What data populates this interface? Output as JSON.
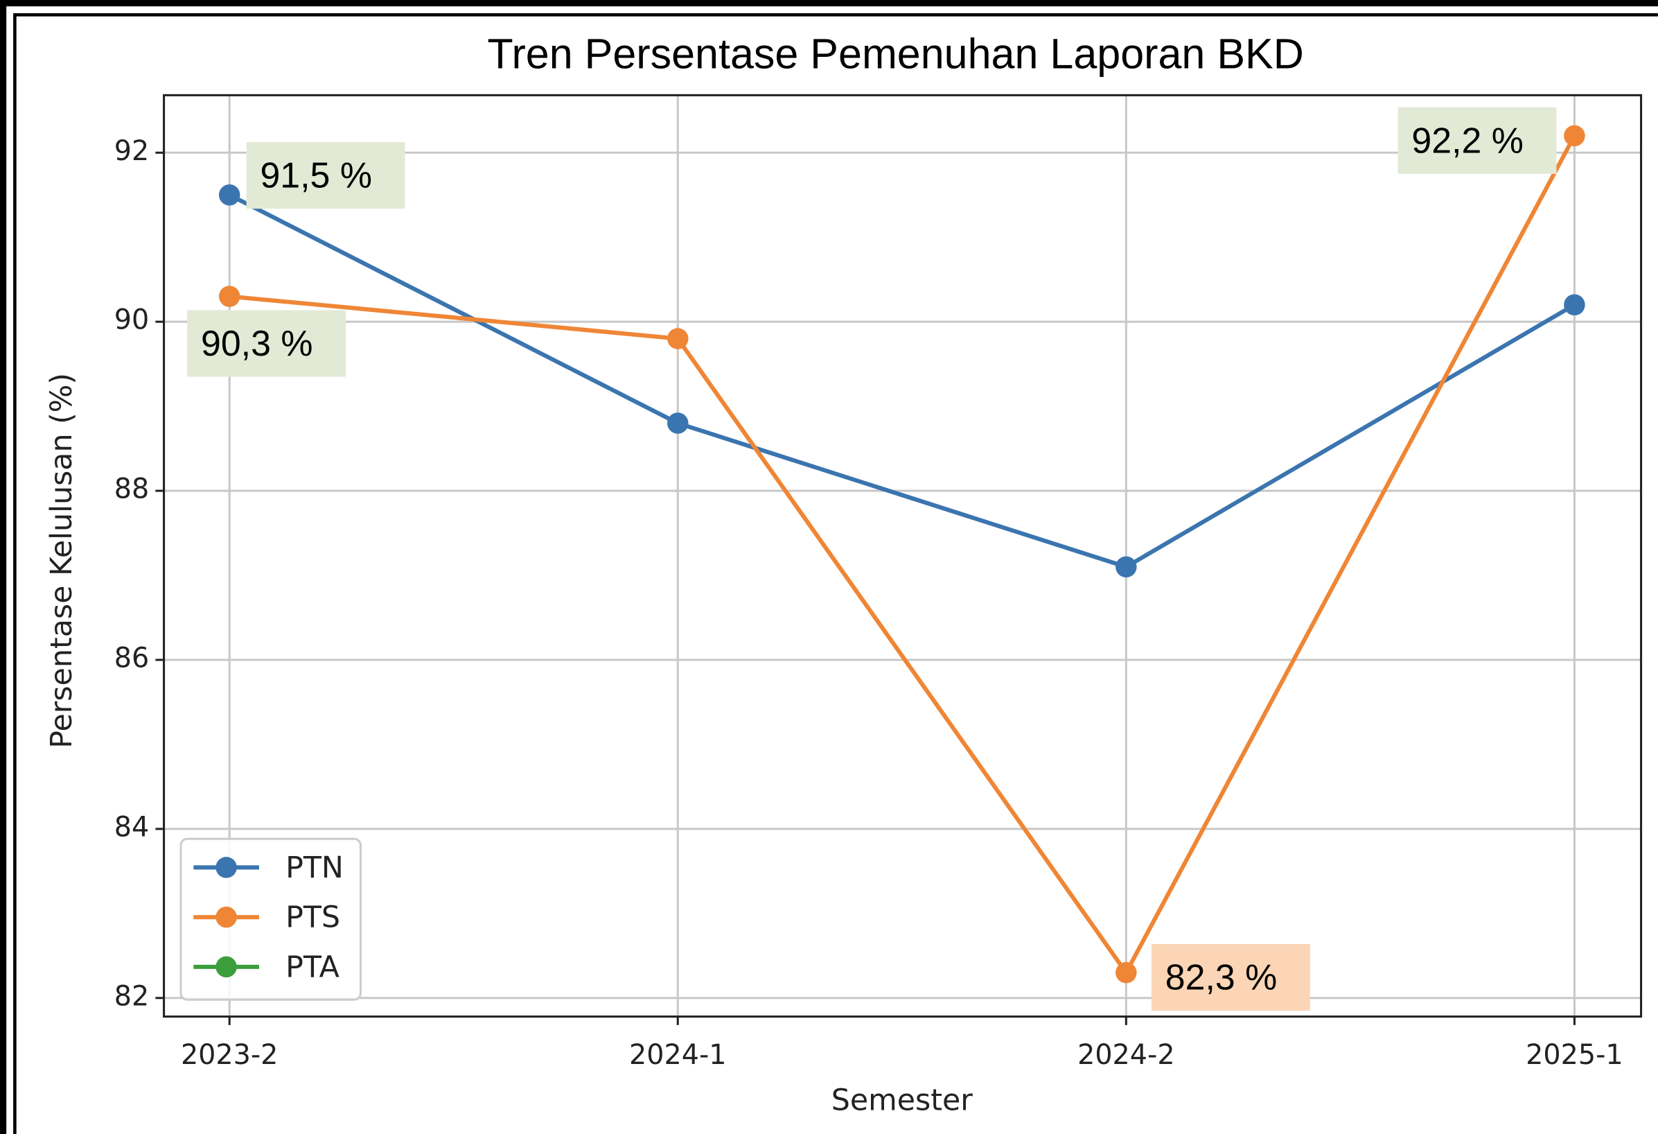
{
  "chart_data": {
    "type": "line",
    "title": "Tren Persentase Pemenuhan Laporan BKD",
    "x_label": "Semester",
    "y_label": "Persentase Kelulusan (%)",
    "categories": [
      "2023-2",
      "2024-1",
      "2024-2",
      "2025-1"
    ],
    "series": [
      {
        "name": "PTN",
        "color": "#3b75af",
        "values": [
          91.5,
          88.8,
          87.1,
          90.2
        ],
        "value_labels": [
          "91,5 %",
          null,
          null,
          null
        ]
      },
      {
        "name": "PTS",
        "color": "#ef8636",
        "values": [
          90.3,
          89.8,
          82.3,
          92.2
        ],
        "value_labels": [
          "90,3 %",
          null,
          "82,3 %",
          "92,2 %"
        ]
      },
      {
        "name": "PTA",
        "color": "#3b9e3b",
        "values": [
          null,
          null,
          null,
          null
        ]
      }
    ],
    "ylim": [
      81.78,
      92.68
    ],
    "yticks": [
      82,
      84,
      86,
      88,
      90,
      92
    ],
    "grid": true,
    "legend": "lower left"
  }
}
